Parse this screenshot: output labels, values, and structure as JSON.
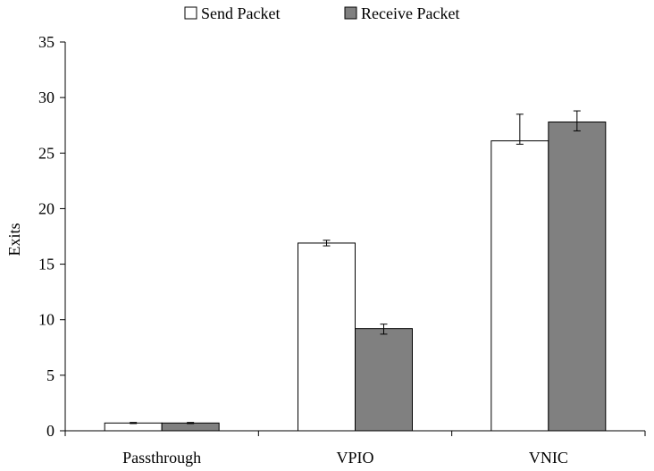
{
  "chart_data": {
    "type": "bar",
    "title": "",
    "xlabel": "",
    "ylabel": "Exits",
    "ylim": [
      0,
      35
    ],
    "yticks": [
      0,
      5,
      10,
      15,
      20,
      25,
      30,
      35
    ],
    "grid": false,
    "legend_position": "top-center",
    "categories": [
      "Passthrough",
      "VPIO",
      "VNIC"
    ],
    "series": [
      {
        "name": "Send Packet",
        "color": "#ffffff",
        "values": [
          0.7,
          16.9,
          26.1
        ],
        "error": [
          [
            0.05,
            0.05
          ],
          [
            0.25,
            0.25
          ],
          [
            0.3,
            2.4
          ]
        ]
      },
      {
        "name": "Receive Packet",
        "color": "#808080",
        "values": [
          0.7,
          9.2,
          27.8
        ],
        "error": [
          [
            0.05,
            0.05
          ],
          [
            0.5,
            0.4
          ],
          [
            0.8,
            1.0
          ]
        ]
      }
    ]
  }
}
